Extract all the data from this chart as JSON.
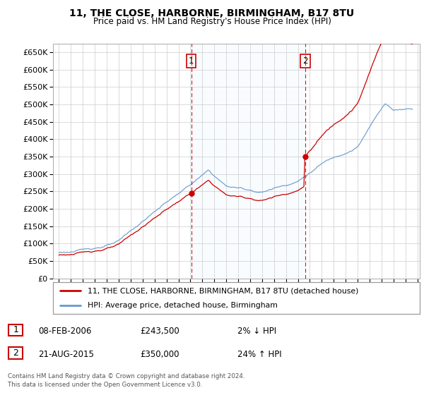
{
  "title": "11, THE CLOSE, HARBORNE, BIRMINGHAM, B17 8TU",
  "subtitle": "Price paid vs. HM Land Registry's House Price Index (HPI)",
  "legend_line1": "11, THE CLOSE, HARBORNE, BIRMINGHAM, B17 8TU (detached house)",
  "legend_line2": "HPI: Average price, detached house, Birmingham",
  "footer1": "Contains HM Land Registry data © Crown copyright and database right 2024.",
  "footer2": "This data is licensed under the Open Government Licence v3.0.",
  "transaction1_date": "08-FEB-2006",
  "transaction1_price": "£243,500",
  "transaction1_hpi": "2% ↓ HPI",
  "transaction2_date": "21-AUG-2015",
  "transaction2_price": "£350,000",
  "transaction2_hpi": "24% ↑ HPI",
  "red_color": "#cc0000",
  "blue_color": "#6699cc",
  "shade_color": "#ddeeff",
  "grid_color": "#cccccc",
  "dashed_line_color": "#cc0000",
  "marker1_x": 2006.08,
  "marker2_x": 2015.62,
  "ylim_min": 0,
  "ylim_max": 675000,
  "xlim_min": 1994.5,
  "xlim_max": 2025.2
}
